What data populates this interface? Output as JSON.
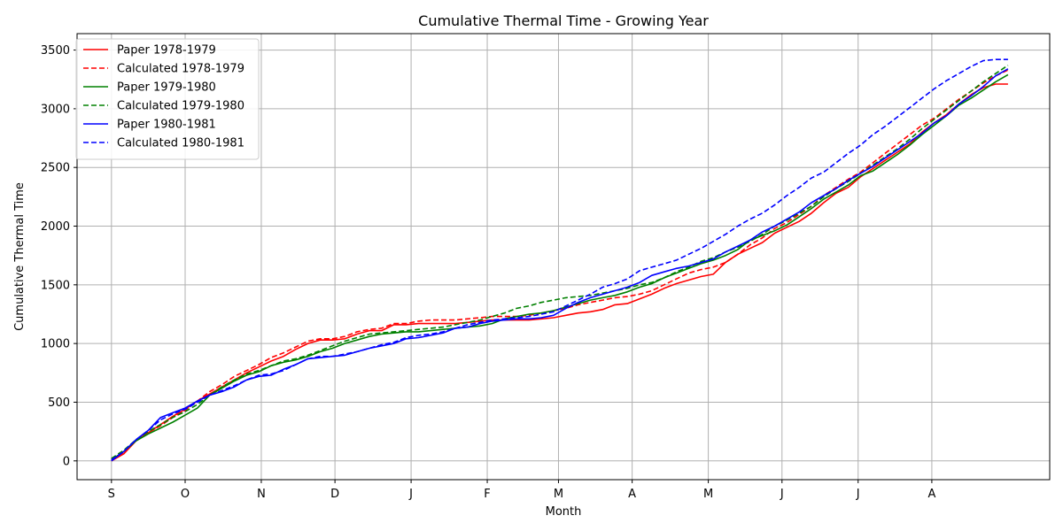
{
  "chart_data": {
    "type": "line",
    "title": "Cumulative Thermal Time - Growing Year",
    "xlabel": "Month",
    "ylabel": "Cumulative Thermal Time",
    "x_tick_labels": [
      "S",
      "O",
      "N",
      "D",
      "J",
      "F",
      "M",
      "A",
      "M",
      "J",
      "J",
      "A"
    ],
    "x_tick_days": [
      0,
      30,
      61,
      91,
      122,
      153,
      182,
      212,
      243,
      273,
      304,
      334
    ],
    "xlim": [
      -14,
      382
    ],
    "ylim": [
      -160,
      3640
    ],
    "y_ticks": [
      0,
      500,
      1000,
      1500,
      2000,
      2500,
      3000,
      3500
    ],
    "grid": true,
    "legend_position": "upper-left",
    "series": [
      {
        "name": "Paper 1978-1979",
        "color": "#ff0000",
        "dash": "solid",
        "x": [
          0,
          5,
          10,
          15,
          20,
          25,
          30,
          35,
          40,
          45,
          50,
          55,
          60,
          65,
          70,
          75,
          80,
          85,
          90,
          95,
          100,
          105,
          110,
          115,
          120,
          125,
          130,
          135,
          140,
          145,
          150,
          155,
          160,
          165,
          170,
          175,
          180,
          185,
          190,
          195,
          200,
          205,
          210,
          215,
          220,
          225,
          230,
          235,
          240,
          245,
          250,
          255,
          260,
          265,
          270,
          275,
          280,
          285,
          290,
          295,
          300,
          305,
          310,
          315,
          320,
          325,
          330,
          335,
          340,
          345,
          350,
          355,
          360,
          365
        ],
        "y": [
          0,
          60,
          170,
          240,
          310,
          380,
          440,
          510,
          570,
          630,
          690,
          750,
          800,
          850,
          890,
          950,
          1000,
          1030,
          1030,
          1040,
          1080,
          1110,
          1110,
          1160,
          1160,
          1170,
          1170,
          1170,
          1170,
          1180,
          1190,
          1200,
          1200,
          1200,
          1200,
          1210,
          1220,
          1240,
          1260,
          1270,
          1290,
          1330,
          1340,
          1380,
          1420,
          1470,
          1510,
          1540,
          1570,
          1590,
          1690,
          1760,
          1810,
          1860,
          1940,
          1990,
          2040,
          2110,
          2200,
          2280,
          2330,
          2420,
          2490,
          2560,
          2630,
          2700,
          2800,
          2880,
          2950,
          3040,
          3120,
          3180,
          3210,
          3210
        ]
      },
      {
        "name": "Calculated 1978-1979",
        "color": "#ff0000",
        "dash": "dashed",
        "x": [
          0,
          5,
          10,
          15,
          20,
          25,
          30,
          35,
          40,
          45,
          50,
          55,
          60,
          65,
          70,
          75,
          80,
          85,
          90,
          95,
          100,
          105,
          110,
          115,
          120,
          125,
          130,
          135,
          140,
          145,
          150,
          155,
          160,
          165,
          170,
          175,
          180,
          185,
          190,
          195,
          200,
          205,
          210,
          215,
          220,
          225,
          230,
          235,
          240,
          245,
          250,
          255,
          260,
          265,
          270,
          275,
          280,
          285,
          290,
          295,
          300,
          305,
          310,
          315,
          320,
          325,
          330,
          335,
          340,
          345,
          350,
          355,
          360,
          365
        ],
        "y": [
          10,
          70,
          170,
          240,
          300,
          370,
          430,
          510,
          590,
          650,
          720,
          770,
          820,
          880,
          920,
          970,
          1020,
          1040,
          1040,
          1060,
          1100,
          1120,
          1130,
          1170,
          1170,
          1190,
          1200,
          1200,
          1200,
          1210,
          1220,
          1230,
          1230,
          1230,
          1240,
          1260,
          1280,
          1300,
          1330,
          1350,
          1370,
          1390,
          1400,
          1420,
          1450,
          1500,
          1550,
          1600,
          1630,
          1650,
          1690,
          1760,
          1840,
          1900,
          1980,
          2030,
          2100,
          2170,
          2260,
          2330,
          2400,
          2460,
          2540,
          2620,
          2700,
          2780,
          2860,
          2920,
          3000,
          3080,
          3150,
          3220,
          3280,
          3330
        ]
      },
      {
        "name": "Paper 1979-1980",
        "color": "#008000",
        "dash": "solid",
        "x": [
          0,
          5,
          10,
          15,
          20,
          25,
          30,
          35,
          40,
          45,
          50,
          55,
          60,
          65,
          70,
          75,
          80,
          85,
          90,
          95,
          100,
          105,
          110,
          115,
          120,
          125,
          130,
          135,
          140,
          145,
          150,
          155,
          160,
          165,
          170,
          175,
          180,
          185,
          190,
          195,
          200,
          205,
          210,
          215,
          220,
          225,
          230,
          235,
          240,
          245,
          250,
          255,
          260,
          265,
          270,
          275,
          280,
          285,
          290,
          295,
          300,
          305,
          310,
          315,
          320,
          325,
          330,
          335,
          340,
          345,
          350,
          355,
          360,
          365
        ],
        "y": [
          10,
          80,
          170,
          230,
          280,
          330,
          390,
          450,
          560,
          620,
          680,
          730,
          760,
          810,
          840,
          860,
          890,
          930,
          960,
          1000,
          1030,
          1060,
          1080,
          1090,
          1100,
          1100,
          1110,
          1120,
          1130,
          1140,
          1150,
          1170,
          1210,
          1230,
          1250,
          1260,
          1280,
          1310,
          1340,
          1370,
          1390,
          1410,
          1440,
          1480,
          1510,
          1560,
          1600,
          1640,
          1680,
          1710,
          1750,
          1800,
          1880,
          1920,
          1960,
          2010,
          2080,
          2150,
          2230,
          2290,
          2350,
          2430,
          2470,
          2540,
          2610,
          2690,
          2780,
          2860,
          2940,
          3030,
          3090,
          3160,
          3230,
          3290
        ]
      },
      {
        "name": "Calculated 1979-1980",
        "color": "#008000",
        "dash": "dashed",
        "x": [
          0,
          5,
          10,
          15,
          20,
          25,
          30,
          35,
          40,
          45,
          50,
          55,
          60,
          65,
          70,
          75,
          80,
          85,
          90,
          95,
          100,
          105,
          110,
          115,
          120,
          125,
          130,
          135,
          140,
          145,
          150,
          155,
          160,
          165,
          170,
          175,
          180,
          185,
          190,
          195,
          200,
          205,
          210,
          215,
          220,
          225,
          230,
          235,
          240,
          245,
          250,
          255,
          260,
          265,
          270,
          275,
          280,
          285,
          290,
          295,
          300,
          305,
          310,
          315,
          320,
          325,
          330,
          335,
          340,
          345,
          350,
          355,
          360,
          365
        ],
        "y": [
          20,
          90,
          180,
          250,
          310,
          370,
          420,
          480,
          560,
          630,
          690,
          740,
          770,
          810,
          850,
          870,
          900,
          940,
          980,
          1020,
          1050,
          1080,
          1090,
          1100,
          1110,
          1120,
          1130,
          1140,
          1160,
          1180,
          1200,
          1230,
          1260,
          1300,
          1320,
          1350,
          1370,
          1390,
          1400,
          1410,
          1430,
          1450,
          1470,
          1500,
          1520,
          1560,
          1610,
          1650,
          1700,
          1730,
          1780,
          1820,
          1870,
          1930,
          2000,
          2050,
          2110,
          2170,
          2250,
          2320,
          2380,
          2450,
          2520,
          2590,
          2660,
          2740,
          2830,
          2910,
          2990,
          3070,
          3150,
          3230,
          3300,
          3370
        ]
      },
      {
        "name": "Paper 1980-1981",
        "color": "#0000ff",
        "dash": "solid",
        "x": [
          0,
          5,
          10,
          15,
          20,
          25,
          30,
          35,
          40,
          45,
          50,
          55,
          60,
          65,
          70,
          75,
          80,
          85,
          90,
          95,
          100,
          105,
          110,
          115,
          120,
          125,
          130,
          135,
          140,
          145,
          150,
          155,
          160,
          165,
          170,
          175,
          180,
          185,
          190,
          195,
          200,
          205,
          210,
          215,
          220,
          225,
          230,
          235,
          240,
          245,
          250,
          255,
          260,
          265,
          270,
          275,
          280,
          285,
          290,
          295,
          300,
          305,
          310,
          315,
          320,
          325,
          330,
          335,
          340,
          345,
          350,
          355,
          360,
          365
        ],
        "y": [
          0,
          80,
          180,
          260,
          370,
          410,
          450,
          510,
          560,
          590,
          630,
          690,
          720,
          730,
          780,
          820,
          870,
          880,
          890,
          900,
          930,
          960,
          980,
          1000,
          1040,
          1050,
          1070,
          1090,
          1130,
          1140,
          1170,
          1190,
          1200,
          1210,
          1210,
          1220,
          1240,
          1300,
          1350,
          1390,
          1420,
          1450,
          1480,
          1520,
          1580,
          1610,
          1640,
          1660,
          1690,
          1720,
          1780,
          1830,
          1880,
          1950,
          2000,
          2060,
          2120,
          2200,
          2260,
          2320,
          2390,
          2450,
          2510,
          2580,
          2650,
          2720,
          2790,
          2880,
          2940,
          3040,
          3110,
          3190,
          3280,
          3340
        ]
      },
      {
        "name": "Calculated 1980-1981",
        "color": "#0000ff",
        "dash": "dashed",
        "x": [
          0,
          5,
          10,
          15,
          20,
          25,
          30,
          35,
          40,
          45,
          50,
          55,
          60,
          65,
          70,
          75,
          80,
          85,
          90,
          95,
          100,
          105,
          110,
          115,
          120,
          125,
          130,
          135,
          140,
          145,
          150,
          155,
          160,
          165,
          170,
          175,
          180,
          185,
          190,
          195,
          200,
          205,
          210,
          215,
          220,
          225,
          230,
          235,
          240,
          245,
          250,
          255,
          260,
          265,
          270,
          275,
          280,
          285,
          290,
          295,
          300,
          305,
          310,
          315,
          320,
          325,
          330,
          335,
          340,
          345,
          350,
          355,
          360,
          365
        ],
        "y": [
          10,
          80,
          180,
          260,
          350,
          400,
          440,
          500,
          560,
          600,
          640,
          690,
          730,
          740,
          770,
          820,
          870,
          890,
          890,
          910,
          930,
          960,
          990,
          1010,
          1050,
          1070,
          1080,
          1100,
          1130,
          1160,
          1180,
          1200,
          1210,
          1220,
          1230,
          1250,
          1270,
          1320,
          1370,
          1420,
          1480,
          1510,
          1550,
          1620,
          1650,
          1680,
          1710,
          1760,
          1810,
          1870,
          1930,
          2000,
          2060,
          2110,
          2180,
          2260,
          2330,
          2410,
          2460,
          2540,
          2620,
          2690,
          2780,
          2850,
          2930,
          3010,
          3090,
          3170,
          3240,
          3300,
          3360,
          3410,
          3420,
          3420
        ]
      }
    ]
  }
}
